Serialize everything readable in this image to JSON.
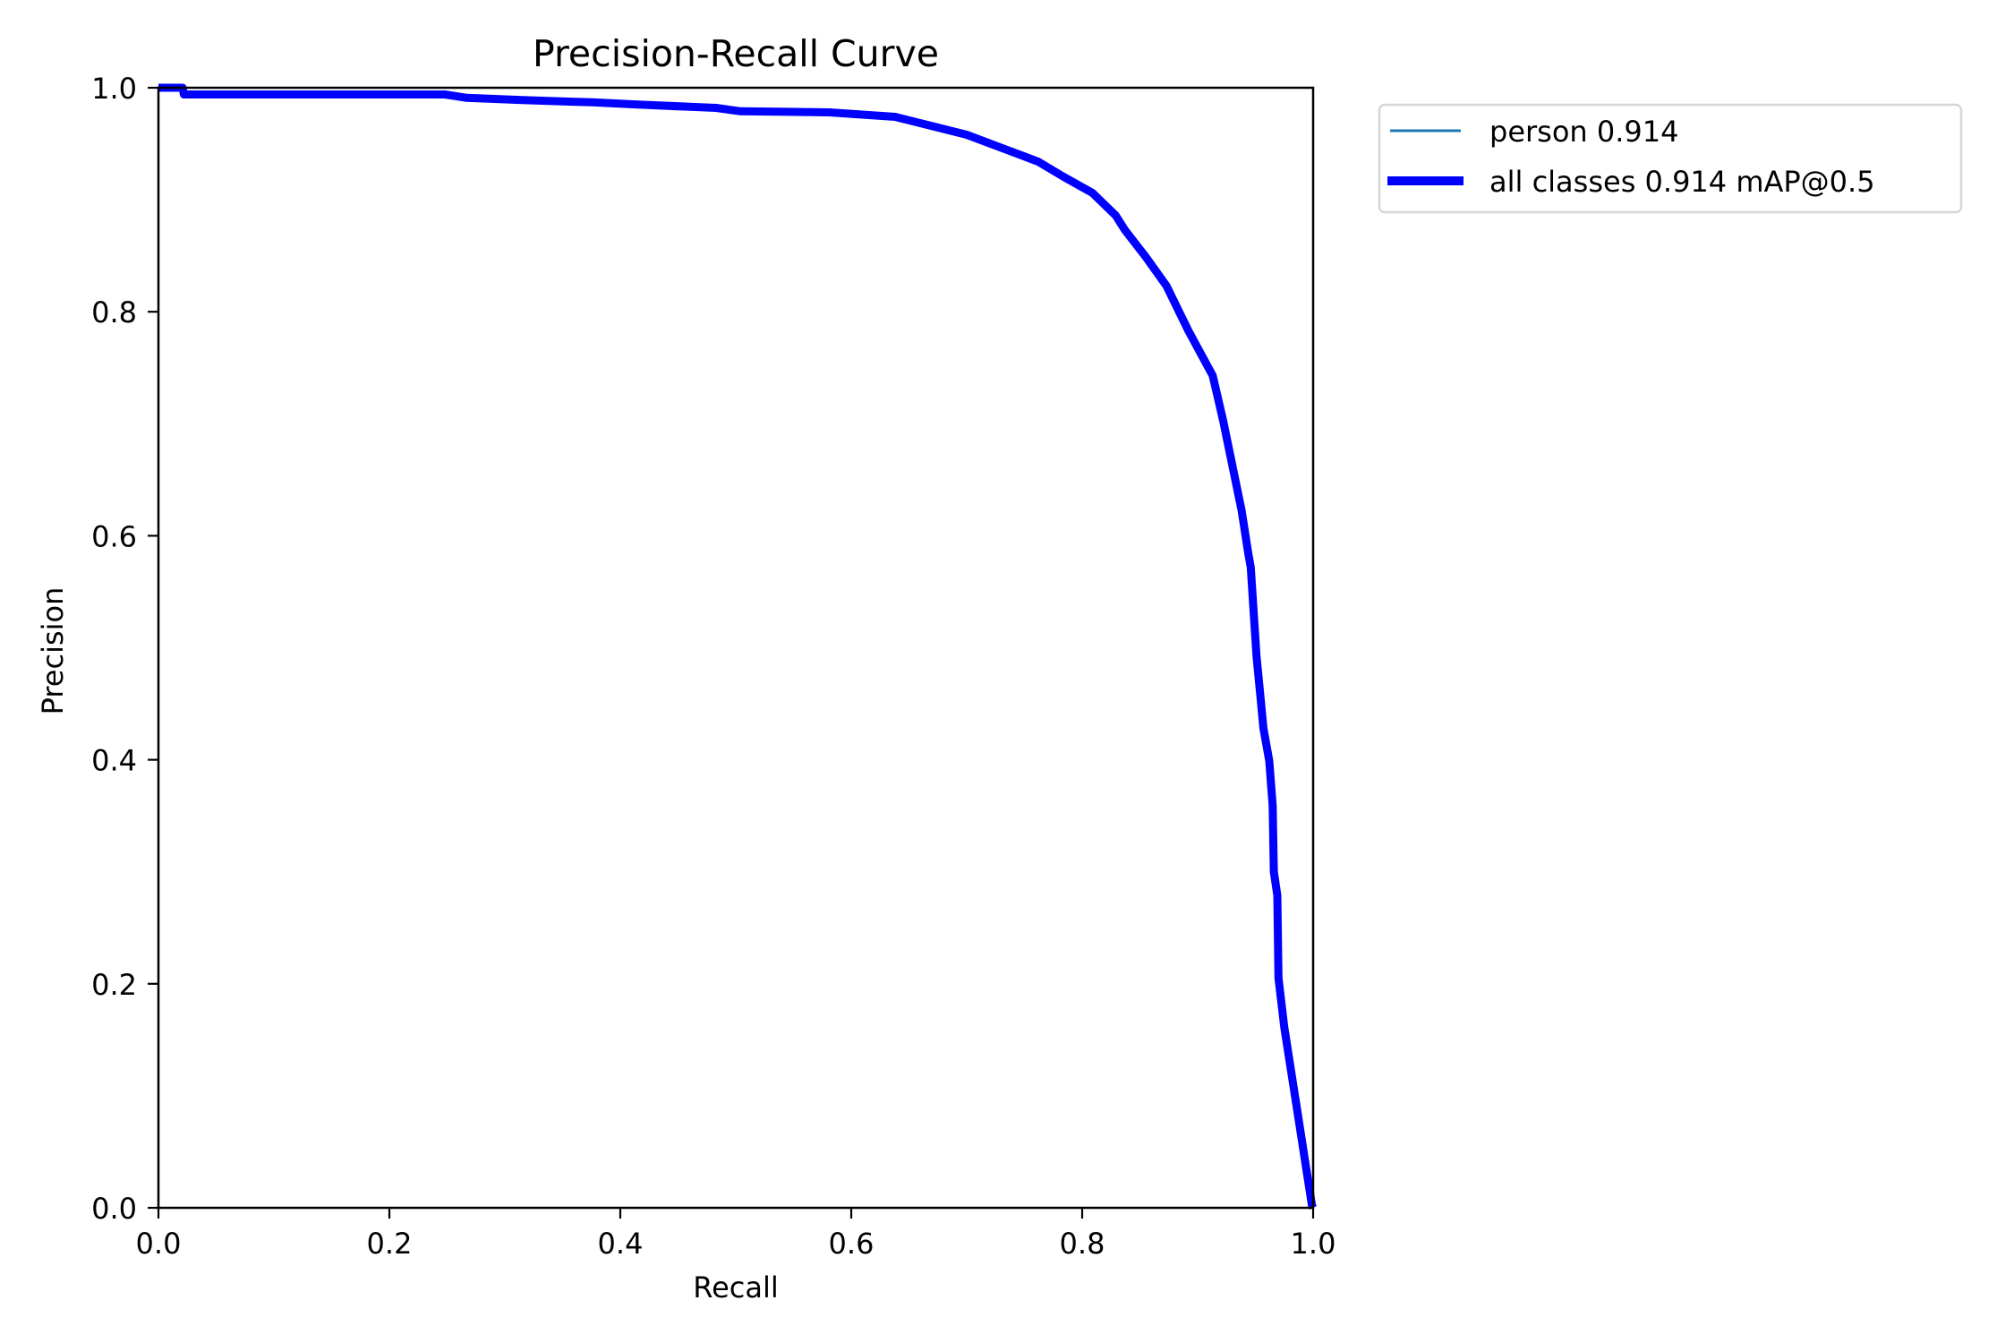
{
  "chart_data": {
    "type": "line",
    "title": "Precision-Recall Curve",
    "xlabel": "Recall",
    "ylabel": "Precision",
    "xlim": [
      0.0,
      1.0
    ],
    "ylim": [
      0.0,
      1.0
    ],
    "grid": false,
    "legend_position": "outside upper right",
    "xticks": [
      "0.0",
      "0.2",
      "0.4",
      "0.6",
      "0.8",
      "1.0"
    ],
    "yticks": [
      "0.0",
      "0.2",
      "0.4",
      "0.6",
      "0.8",
      "1.0"
    ],
    "series": [
      {
        "name": "person 0.914",
        "color": "#1f77b4",
        "linewidth": 3,
        "x": [
          0.0,
          0.021,
          0.022,
          0.248,
          0.267,
          0.315,
          0.376,
          0.415,
          0.483,
          0.504,
          0.581,
          0.638,
          0.7,
          0.731,
          0.762,
          0.783,
          0.809,
          0.829,
          0.837,
          0.855,
          0.873,
          0.892,
          0.913,
          0.922,
          0.93,
          0.938,
          0.944,
          0.946,
          0.951,
          0.954,
          0.957,
          0.962,
          0.965,
          0.966,
          0.969,
          0.97,
          0.975,
          0.987,
          0.999,
          1.0
        ],
        "y": [
          1.0,
          1.0,
          0.994,
          0.994,
          0.991,
          0.989,
          0.987,
          0.985,
          0.982,
          0.979,
          0.978,
          0.974,
          0.958,
          0.946,
          0.934,
          0.921,
          0.906,
          0.886,
          0.873,
          0.849,
          0.823,
          0.783,
          0.743,
          0.703,
          0.663,
          0.623,
          0.583,
          0.572,
          0.492,
          0.46,
          0.428,
          0.399,
          0.359,
          0.3,
          0.279,
          0.205,
          0.161,
          0.082,
          0.002,
          0.0
        ]
      },
      {
        "name": "all classes 0.914 mAP@0.5",
        "color": "#0000ff",
        "linewidth": 9,
        "x": [
          0.0,
          0.021,
          0.022,
          0.248,
          0.267,
          0.315,
          0.376,
          0.415,
          0.483,
          0.504,
          0.581,
          0.638,
          0.7,
          0.731,
          0.762,
          0.783,
          0.809,
          0.829,
          0.837,
          0.855,
          0.873,
          0.892,
          0.913,
          0.922,
          0.93,
          0.938,
          0.944,
          0.946,
          0.951,
          0.954,
          0.957,
          0.962,
          0.965,
          0.966,
          0.969,
          0.97,
          0.975,
          0.987,
          0.999,
          1.0
        ],
        "y": [
          1.0,
          1.0,
          0.994,
          0.994,
          0.991,
          0.989,
          0.987,
          0.985,
          0.982,
          0.979,
          0.978,
          0.974,
          0.958,
          0.946,
          0.934,
          0.921,
          0.906,
          0.886,
          0.873,
          0.849,
          0.823,
          0.783,
          0.743,
          0.703,
          0.663,
          0.623,
          0.583,
          0.572,
          0.492,
          0.46,
          0.428,
          0.399,
          0.359,
          0.3,
          0.279,
          0.205,
          0.161,
          0.082,
          0.002,
          0.0
        ]
      }
    ],
    "legend": [
      {
        "label": "person 0.914",
        "color": "#1f77b4"
      },
      {
        "label": "all classes 0.914 mAP@0.5",
        "color": "#0000ff"
      }
    ]
  }
}
